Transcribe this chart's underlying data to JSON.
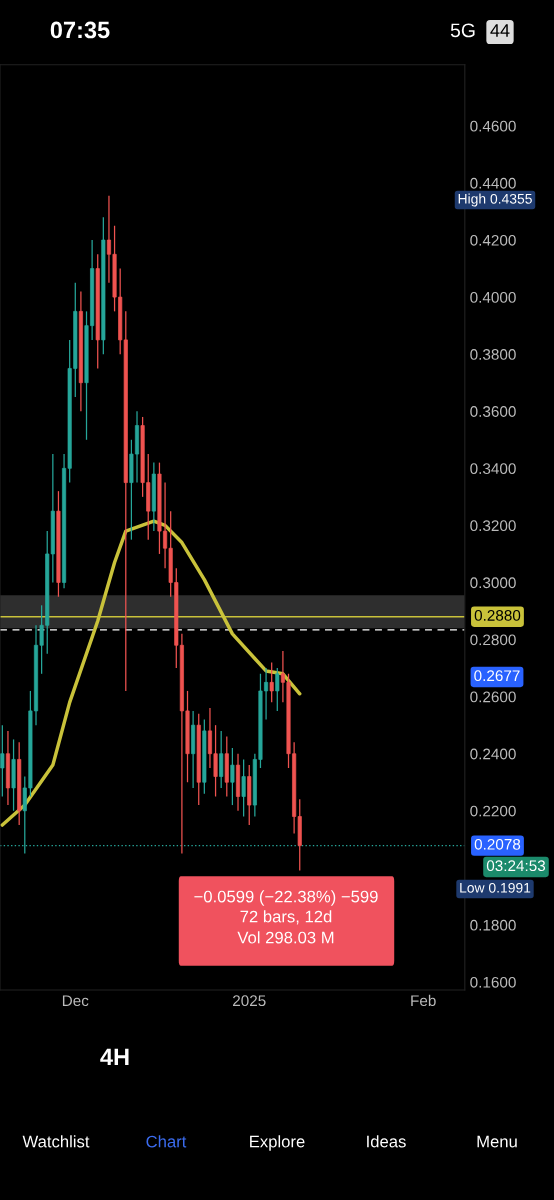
{
  "chart_data": {
    "type": "candlestick",
    "x": [
      "2024-11-18",
      "2024-11-19",
      "2024-11-20",
      "2024-11-21",
      "2024-11-22",
      "2024-11-23",
      "2024-11-24",
      "2024-11-25",
      "2024-11-26",
      "2024-11-27",
      "2024-11-28",
      "2024-11-29",
      "2024-11-30",
      "2024-12-01",
      "2024-12-02",
      "2024-12-03",
      "2024-12-04",
      "2024-12-05",
      "2024-12-06",
      "2024-12-07",
      "2024-12-08",
      "2024-12-09",
      "2024-12-10",
      "2024-12-11",
      "2024-12-12",
      "2024-12-13",
      "2024-12-14",
      "2024-12-15",
      "2024-12-16",
      "2024-12-17",
      "2024-12-18",
      "2024-12-19",
      "2024-12-20",
      "2024-12-21",
      "2024-12-22",
      "2024-12-23",
      "2024-12-24",
      "2024-12-25",
      "2024-12-26",
      "2024-12-27",
      "2024-12-28",
      "2024-12-29",
      "2024-12-30",
      "2024-12-31",
      "2025-01-01",
      "2025-01-02",
      "2025-01-03",
      "2025-01-04",
      "2025-01-05",
      "2025-01-06",
      "2025-01-07",
      "2025-01-08",
      "2025-01-09",
      "2025-01-10"
    ],
    "ohlc": [
      [
        0.235,
        0.25,
        0.225,
        0.24
      ],
      [
        0.24,
        0.248,
        0.222,
        0.228
      ],
      [
        0.228,
        0.245,
        0.22,
        0.238
      ],
      [
        0.238,
        0.244,
        0.215,
        0.22
      ],
      [
        0.22,
        0.232,
        0.205,
        0.228
      ],
      [
        0.228,
        0.262,
        0.225,
        0.255
      ],
      [
        0.255,
        0.285,
        0.25,
        0.278
      ],
      [
        0.278,
        0.292,
        0.268,
        0.285
      ],
      [
        0.285,
        0.318,
        0.275,
        0.31
      ],
      [
        0.31,
        0.345,
        0.3,
        0.325
      ],
      [
        0.325,
        0.332,
        0.295,
        0.3
      ],
      [
        0.3,
        0.345,
        0.298,
        0.34
      ],
      [
        0.34,
        0.385,
        0.335,
        0.375
      ],
      [
        0.375,
        0.405,
        0.365,
        0.395
      ],
      [
        0.395,
        0.402,
        0.36,
        0.37
      ],
      [
        0.37,
        0.395,
        0.35,
        0.39
      ],
      [
        0.39,
        0.42,
        0.385,
        0.41
      ],
      [
        0.41,
        0.415,
        0.375,
        0.385
      ],
      [
        0.385,
        0.428,
        0.38,
        0.42
      ],
      [
        0.42,
        0.4355,
        0.405,
        0.415
      ],
      [
        0.415,
        0.425,
        0.395,
        0.4
      ],
      [
        0.4,
        0.41,
        0.38,
        0.385
      ],
      [
        0.385,
        0.395,
        0.262,
        0.335
      ],
      [
        0.335,
        0.35,
        0.315,
        0.345
      ],
      [
        0.345,
        0.36,
        0.335,
        0.355
      ],
      [
        0.355,
        0.358,
        0.33,
        0.335
      ],
      [
        0.335,
        0.345,
        0.315,
        0.325
      ],
      [
        0.325,
        0.342,
        0.318,
        0.338
      ],
      [
        0.338,
        0.342,
        0.31,
        0.318
      ],
      [
        0.318,
        0.335,
        0.305,
        0.312
      ],
      [
        0.312,
        0.325,
        0.295,
        0.3
      ],
      [
        0.3,
        0.305,
        0.27,
        0.278
      ],
      [
        0.278,
        0.282,
        0.205,
        0.255
      ],
      [
        0.255,
        0.262,
        0.23,
        0.24
      ],
      [
        0.24,
        0.255,
        0.228,
        0.25
      ],
      [
        0.25,
        0.254,
        0.222,
        0.23
      ],
      [
        0.23,
        0.252,
        0.226,
        0.248
      ],
      [
        0.248,
        0.256,
        0.235,
        0.24
      ],
      [
        0.24,
        0.25,
        0.225,
        0.232
      ],
      [
        0.232,
        0.248,
        0.228,
        0.24
      ],
      [
        0.24,
        0.246,
        0.225,
        0.23
      ],
      [
        0.23,
        0.242,
        0.222,
        0.236
      ],
      [
        0.236,
        0.24,
        0.22,
        0.225
      ],
      [
        0.225,
        0.238,
        0.218,
        0.232
      ],
      [
        0.232,
        0.236,
        0.215,
        0.222
      ],
      [
        0.222,
        0.24,
        0.218,
        0.238
      ],
      [
        0.238,
        0.268,
        0.235,
        0.262
      ],
      [
        0.262,
        0.27,
        0.252,
        0.265
      ],
      [
        0.265,
        0.272,
        0.258,
        0.262
      ],
      [
        0.262,
        0.27,
        0.255,
        0.268
      ],
      [
        0.268,
        0.276,
        0.258,
        0.265
      ],
      [
        0.265,
        0.268,
        0.235,
        0.24
      ],
      [
        0.24,
        0.244,
        0.212,
        0.218
      ],
      [
        0.218,
        0.224,
        0.1991,
        0.2078
      ]
    ],
    "colors": [
      "#26a69a",
      "#ef5350",
      "#26a69a",
      "#ef5350",
      "#26a69a",
      "#26a69a",
      "#26a69a",
      "#26a69a",
      "#26a69a",
      "#26a69a",
      "#ef5350",
      "#26a69a",
      "#26a69a",
      "#26a69a",
      "#ef5350",
      "#26a69a",
      "#26a69a",
      "#ef5350",
      "#26a69a",
      "#ef5350",
      "#ef5350",
      "#ef5350",
      "#ef5350",
      "#26a69a",
      "#26a69a",
      "#ef5350",
      "#ef5350",
      "#26a69a",
      "#ef5350",
      "#ef5350",
      "#ef5350",
      "#ef5350",
      "#ef5350",
      "#ef5350",
      "#26a69a",
      "#ef5350",
      "#26a69a",
      "#ef5350",
      "#ef5350",
      "#26a69a",
      "#ef5350",
      "#26a69a",
      "#ef5350",
      "#26a69a",
      "#ef5350",
      "#26a69a",
      "#26a69a",
      "#26a69a",
      "#ef5350",
      "#26a69a",
      "#ef5350",
      "#ef5350",
      "#ef5350",
      "#ef5350"
    ],
    "series": [
      {
        "type": "line",
        "color": "#c9c23a",
        "x": [
          "2024-11-18",
          "2024-11-22",
          "2024-11-27",
          "2024-11-30",
          "2024-12-05",
          "2024-12-08",
          "2024-12-10",
          "2024-12-15",
          "2024-12-17",
          "2024-12-20",
          "2024-12-24",
          "2024-12-29",
          "2025-01-04",
          "2025-01-07",
          "2025-01-10"
        ],
        "values": [
          0.215,
          0.222,
          0.236,
          0.258,
          0.2865,
          0.307,
          0.318,
          0.3215,
          0.32,
          0.314,
          0.301,
          0.282,
          0.269,
          0.268,
          0.261
        ]
      }
    ],
    "xlim": [
      "2024-11-17T14:00",
      "2025-02-08T10:00"
    ],
    "xticks": [
      {
        "value": "2024-12-01",
        "label": "Dec"
      },
      {
        "value": "2025-01-01",
        "label": "2025"
      },
      {
        "value": "2025-02-01",
        "label": "Feb"
      }
    ],
    "ylim": [
      0.1572,
      0.4814
    ],
    "yticks": [
      {
        "value": 0.16,
        "label": "0.1600"
      },
      {
        "value": 0.18,
        "label": "0.1800"
      },
      {
        "value": 0.22,
        "label": "0.2200"
      },
      {
        "value": 0.24,
        "label": "0.2400"
      },
      {
        "value": 0.26,
        "label": "0.2600"
      },
      {
        "value": 0.28,
        "label": "0.2800"
      },
      {
        "value": 0.3,
        "label": "0.3000"
      },
      {
        "value": 0.32,
        "label": "0.3200"
      },
      {
        "value": 0.34,
        "label": "0.3400"
      },
      {
        "value": 0.36,
        "label": "0.3600"
      },
      {
        "value": 0.38,
        "label": "0.3800"
      },
      {
        "value": 0.4,
        "label": "0.4000"
      },
      {
        "value": 0.42,
        "label": "0.4200"
      },
      {
        "value": 0.44,
        "label": "0.4400"
      },
      {
        "value": 0.46,
        "label": "0.4600"
      }
    ],
    "ref_lines": [
      {
        "axis": "y",
        "value": 0.288,
        "label": "0.2880",
        "color": "#c9c23a",
        "line_style": "solid"
      },
      {
        "axis": "y",
        "value": 0.2834,
        "color": "#ffffff",
        "line_style": "dashed"
      },
      {
        "axis": "y",
        "value": 0.2078,
        "label": "0.2078",
        "color": "#26a69a",
        "line_style": "dotted"
      }
    ],
    "bands": [
      {
        "axis": "y",
        "from": 0.284,
        "to": 0.2955,
        "color": "#3a3a3a"
      }
    ],
    "annotations": [
      "High 0.4355",
      "Low 0.1991",
      "0.2677",
      "03:24:53",
      "−0.0599 (−22.38%) −599",
      "72 bars, 12d",
      "Vol 298.03 M",
      "07:35",
      "5G",
      "44",
      "4H",
      "Watchlist",
      "Chart",
      "Explore",
      "Ideas",
      "Menu"
    ],
    "grid": false,
    "legend": false
  }
}
